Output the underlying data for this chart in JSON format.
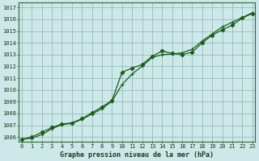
{
  "title": "Graphe pression niveau de la mer (hPa)",
  "bg_color": "#cce8e8",
  "grid_color": "#99bbbb",
  "line_color": "#1a5c1a",
  "xlim": [
    -0.3,
    23.3
  ],
  "ylim": [
    1005.6,
    1017.4
  ],
  "yticks": [
    1006,
    1007,
    1008,
    1009,
    1010,
    1011,
    1012,
    1013,
    1014,
    1015,
    1016,
    1017
  ],
  "xticks": [
    0,
    1,
    2,
    3,
    4,
    5,
    6,
    7,
    8,
    9,
    10,
    11,
    12,
    13,
    14,
    15,
    16,
    17,
    18,
    19,
    20,
    21,
    22,
    23
  ],
  "series1_x": [
    0,
    1,
    2,
    3,
    4,
    5,
    6,
    7,
    8,
    9,
    10,
    11,
    12,
    13,
    14,
    15,
    16,
    17,
    18,
    19,
    20,
    21,
    22,
    23
  ],
  "series1_y": [
    1005.8,
    1005.9,
    1006.2,
    1006.7,
    1007.05,
    1007.15,
    1007.5,
    1007.95,
    1008.4,
    1009.05,
    1010.45,
    1011.35,
    1012.0,
    1012.75,
    1013.0,
    1013.05,
    1013.15,
    1013.45,
    1014.15,
    1014.75,
    1015.35,
    1015.75,
    1016.15,
    1016.55
  ],
  "series2_x": [
    0,
    1,
    2,
    3,
    4,
    5,
    6,
    7,
    8,
    9,
    10,
    11,
    12,
    13,
    14,
    15,
    16,
    17,
    18,
    19,
    20,
    21,
    22,
    23
  ],
  "series2_y": [
    1005.8,
    1006.0,
    1006.4,
    1006.8,
    1007.1,
    1007.2,
    1007.55,
    1008.05,
    1008.55,
    1009.1,
    1011.5,
    1011.85,
    1012.15,
    1012.85,
    1013.3,
    1013.1,
    1013.0,
    1013.2,
    1014.0,
    1014.65,
    1015.1,
    1015.5,
    1016.1,
    1016.5
  ],
  "title_fontsize": 6,
  "tick_fontsize": 5
}
